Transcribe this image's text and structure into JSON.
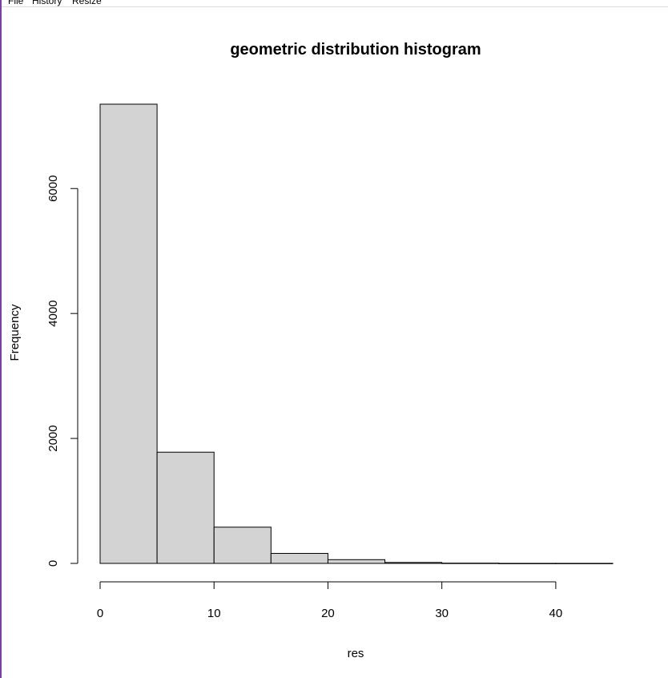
{
  "menubar": {
    "items": [
      "File",
      "History",
      "Resize"
    ]
  },
  "colors": {
    "bar_fill": "#d3d3d3",
    "bar_stroke": "#000000",
    "window_border": "#7a3fa8"
  },
  "chart_data": {
    "type": "bar",
    "title": "geometric distribution histogram",
    "xlabel": "res",
    "ylabel": "Frequency",
    "bins": [
      {
        "start": 0,
        "end": 5,
        "count": 7350
      },
      {
        "start": 5,
        "end": 10,
        "count": 1780
      },
      {
        "start": 10,
        "end": 15,
        "count": 580
      },
      {
        "start": 15,
        "end": 20,
        "count": 160
      },
      {
        "start": 20,
        "end": 25,
        "count": 60
      },
      {
        "start": 25,
        "end": 30,
        "count": 15
      },
      {
        "start": 30,
        "end": 35,
        "count": 4
      },
      {
        "start": 35,
        "end": 40,
        "count": 1
      },
      {
        "start": 40,
        "end": 45,
        "count": 1
      }
    ],
    "xlim": [
      0,
      45
    ],
    "ylim": [
      0,
      7350
    ],
    "x_ticks": [
      0,
      10,
      20,
      30,
      40
    ],
    "x_tick_labels": [
      "0",
      "10",
      "20",
      "30",
      "40"
    ],
    "y_ticks": [
      0,
      2000,
      4000,
      6000
    ],
    "y_tick_labels": [
      "0",
      "2000",
      "4000",
      "6000"
    ],
    "grid": false,
    "legend": "none"
  }
}
